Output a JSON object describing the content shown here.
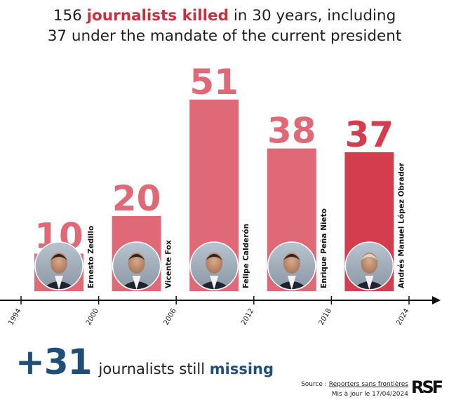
{
  "header": {
    "line1_pre": "156 ",
    "line1_highlight": "journalists killed",
    "line1_post": " in 30 years, including",
    "line2": "37 under the mandate of the current president"
  },
  "chart_data": {
    "type": "bar",
    "x_ticks": [
      "1994",
      "2000",
      "2006",
      "2012",
      "2018",
      "2024"
    ],
    "bars": [
      {
        "president": "Ernesto Zedillo",
        "start": 1994,
        "end": 2000,
        "value": 10,
        "color": "#e06977"
      },
      {
        "president": "Vicente Fox",
        "start": 2000,
        "end": 2006,
        "value": 20,
        "color": "#e06977"
      },
      {
        "president": "Felipe Calderón",
        "start": 2006,
        "end": 2012,
        "value": 51,
        "color": "#e06977"
      },
      {
        "president": "Enrique Peña Nieto",
        "start": 2012,
        "end": 2018,
        "value": 38,
        "color": "#e06977"
      },
      {
        "president": "Andrés Manuel López Obrador",
        "start": 2018,
        "end": 2024,
        "value": 37,
        "color": "#d43d4d"
      }
    ],
    "label_color": "#e06977",
    "label_color_current": "#d43d4d",
    "ylim": [
      0,
      51
    ]
  },
  "missing": {
    "count": "+31",
    "text": "journalists still ",
    "highlight": "missing"
  },
  "source": {
    "prefix": "Source : ",
    "link": "Reporters sans frontières",
    "updated": "Mis à jour le 17/04/2024"
  },
  "logo": {
    "text": "RSF",
    "icon": "rsf-logo-icon"
  },
  "colors": {
    "accent_red": "#c5313f",
    "accent_blue": "#1f4e79"
  }
}
